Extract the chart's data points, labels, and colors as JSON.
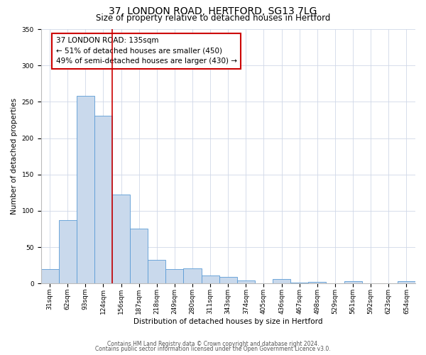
{
  "title": "37, LONDON ROAD, HERTFORD, SG13 7LG",
  "subtitle": "Size of property relative to detached houses in Hertford",
  "xlabel": "Distribution of detached houses by size in Hertford",
  "ylabel": "Number of detached properties",
  "all_labels": [
    "31sqm",
    "62sqm",
    "93sqm",
    "124sqm",
    "156sqm",
    "187sqm",
    "218sqm",
    "249sqm",
    "280sqm",
    "311sqm",
    "343sqm",
    "374sqm",
    "405sqm",
    "436sqm",
    "467sqm",
    "498sqm",
    "529sqm",
    "561sqm",
    "592sqm",
    "623sqm",
    "654sqm"
  ],
  "bar_values": [
    20,
    87,
    258,
    231,
    122,
    76,
    33,
    20,
    21,
    11,
    9,
    4,
    0,
    6,
    1,
    2,
    0,
    3,
    0,
    0,
    3
  ],
  "num_bars": 21,
  "bar_color": "#c9d9ec",
  "bar_edge_color": "#5b9bd5",
  "ylim": [
    0,
    350
  ],
  "yticks": [
    0,
    50,
    100,
    150,
    200,
    250,
    300,
    350
  ],
  "vline_x": 3.5,
  "vline_color": "#cc0000",
  "annotation_box_text": "37 LONDON ROAD: 135sqm\n← 51% of detached houses are smaller (450)\n49% of semi-detached houses are larger (430) →",
  "annotation_box_edge_color": "#cc0000",
  "footer_line1": "Contains HM Land Registry data © Crown copyright and database right 2024.",
  "footer_line2": "Contains public sector information licensed under the Open Government Licence v3.0.",
  "title_fontsize": 10,
  "subtitle_fontsize": 8.5,
  "axis_label_fontsize": 7.5,
  "tick_fontsize": 6.5,
  "footer_fontsize": 5.5,
  "annotation_fontsize": 7.5
}
